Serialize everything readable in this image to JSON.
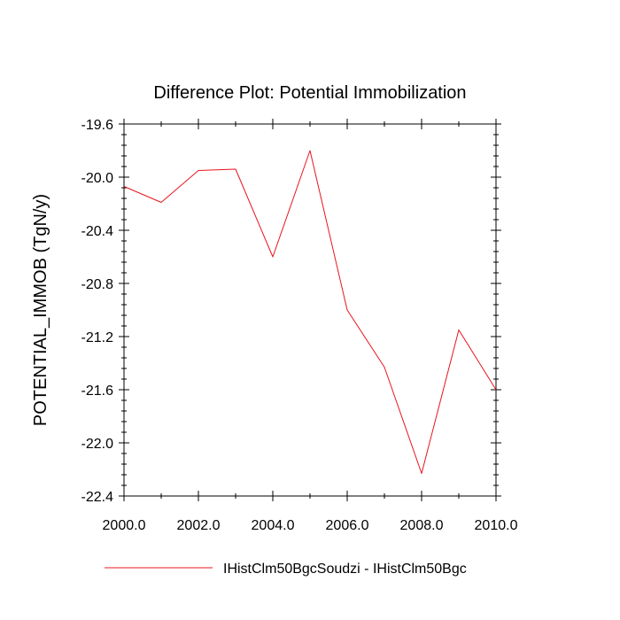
{
  "chart_data": {
    "type": "line",
    "title": "Difference Plot: Potential Immobilization",
    "xlabel": "",
    "ylabel": "POTENTIAL_IMMOB  (TgN/y)",
    "xlim": [
      2000,
      2010
    ],
    "ylim": [
      -22.4,
      -19.6
    ],
    "xticks": [
      2000,
      2002,
      2004,
      2006,
      2008,
      2010
    ],
    "xtick_labels": [
      "2000.0",
      "2002.0",
      "2004.0",
      "2006.0",
      "2008.0",
      "2010.0"
    ],
    "yticks": [
      -19.6,
      -20.0,
      -20.4,
      -20.8,
      -21.2,
      -21.6,
      -22.0,
      -22.4
    ],
    "ytick_labels": [
      "-19.6",
      "-20.0",
      "-20.4",
      "-20.8",
      "-21.2",
      "-21.6",
      "-22.0",
      "-22.4"
    ],
    "grid": false,
    "legend_position": "bottom",
    "series": [
      {
        "name": "IHistClm50BgcSoudzi - IHistClm50Bgc",
        "color": "#e8141c",
        "x": [
          2000,
          2001,
          2002,
          2003,
          2004,
          2005,
          2006,
          2007,
          2008,
          2009,
          2010
        ],
        "y": [
          -20.07,
          -20.19,
          -19.95,
          -19.94,
          -20.6,
          -19.8,
          -21.0,
          -21.43,
          -22.23,
          -21.15,
          -21.6
        ]
      }
    ]
  }
}
